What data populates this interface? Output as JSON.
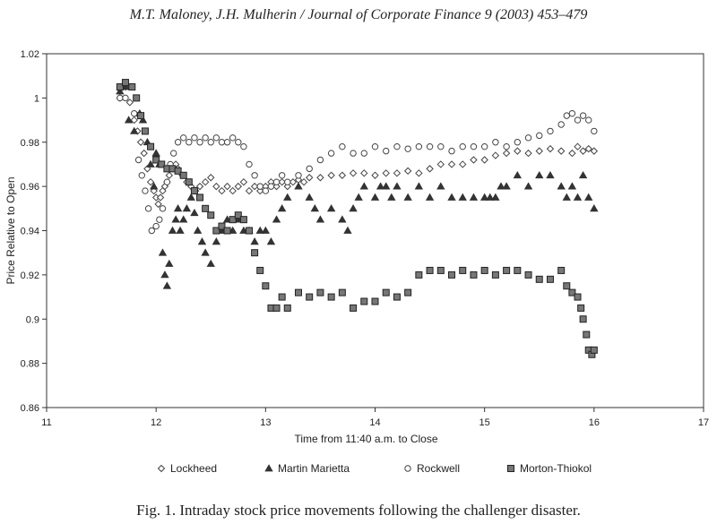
{
  "header": {
    "text": "M.T. Maloney, J.H. Mulherin / Journal of Corporate Finance 9 (2003) 453–479"
  },
  "caption": {
    "text": "Fig. 1. Intraday stock price movements following the challenger disaster."
  },
  "chart_data": {
    "type": "scatter",
    "title": "",
    "xlabel": "Time from 11:40 a.m. to Close",
    "ylabel": "Price Relative to Open",
    "xlim": [
      11,
      17
    ],
    "ylim": [
      0.86,
      1.02
    ],
    "x_ticks": [
      11,
      12,
      13,
      14,
      15,
      16,
      17
    ],
    "y_ticks": [
      0.86,
      0.88,
      0.9,
      0.92,
      0.94,
      0.96,
      0.98,
      1.0,
      1.02
    ],
    "x_tick_labels": [
      "11",
      "12",
      "13",
      "14",
      "15",
      "16",
      "17"
    ],
    "y_tick_labels": [
      "0.86",
      "0.88",
      "0.9",
      "0.92",
      "0.94",
      "0.96",
      "0.98",
      "1",
      "1.02"
    ],
    "grid": false,
    "legend_position": "bottom",
    "series": [
      {
        "name": "Lockheed",
        "marker": "diamond",
        "color": "#444444",
        "points": [
          [
            11.67,
            1.0
          ],
          [
            11.72,
            1.005
          ],
          [
            11.76,
            0.998
          ],
          [
            11.8,
            0.99
          ],
          [
            11.83,
            0.985
          ],
          [
            11.86,
            0.98
          ],
          [
            11.89,
            0.975
          ],
          [
            11.92,
            0.968
          ],
          [
            11.95,
            0.962
          ],
          [
            11.98,
            0.958
          ],
          [
            12.0,
            0.955
          ],
          [
            12.02,
            0.952
          ],
          [
            12.04,
            0.955
          ],
          [
            12.06,
            0.958
          ],
          [
            12.08,
            0.96
          ],
          [
            12.1,
            0.962
          ],
          [
            12.12,
            0.965
          ],
          [
            12.15,
            0.968
          ],
          [
            12.18,
            0.97
          ],
          [
            12.2,
            0.968
          ],
          [
            12.24,
            0.965
          ],
          [
            12.28,
            0.962
          ],
          [
            12.32,
            0.96
          ],
          [
            12.36,
            0.958
          ],
          [
            12.4,
            0.96
          ],
          [
            12.45,
            0.962
          ],
          [
            12.5,
            0.964
          ],
          [
            12.55,
            0.96
          ],
          [
            12.6,
            0.958
          ],
          [
            12.65,
            0.96
          ],
          [
            12.7,
            0.958
          ],
          [
            12.75,
            0.96
          ],
          [
            12.8,
            0.962
          ],
          [
            12.85,
            0.958
          ],
          [
            12.9,
            0.96
          ],
          [
            12.95,
            0.958
          ],
          [
            13.0,
            0.96
          ],
          [
            13.05,
            0.962
          ],
          [
            13.1,
            0.96
          ],
          [
            13.15,
            0.962
          ],
          [
            13.2,
            0.96
          ],
          [
            13.25,
            0.962
          ],
          [
            13.3,
            0.963
          ],
          [
            13.35,
            0.962
          ],
          [
            13.4,
            0.964
          ],
          [
            13.5,
            0.964
          ],
          [
            13.6,
            0.965
          ],
          [
            13.7,
            0.965
          ],
          [
            13.8,
            0.966
          ],
          [
            13.9,
            0.966
          ],
          [
            14.0,
            0.965
          ],
          [
            14.1,
            0.966
          ],
          [
            14.2,
            0.966
          ],
          [
            14.3,
            0.967
          ],
          [
            14.4,
            0.966
          ],
          [
            14.5,
            0.968
          ],
          [
            14.6,
            0.97
          ],
          [
            14.7,
            0.97
          ],
          [
            14.8,
            0.97
          ],
          [
            14.9,
            0.972
          ],
          [
            15.0,
            0.972
          ],
          [
            15.1,
            0.974
          ],
          [
            15.2,
            0.975
          ],
          [
            15.3,
            0.976
          ],
          [
            15.4,
            0.975
          ],
          [
            15.5,
            0.976
          ],
          [
            15.6,
            0.977
          ],
          [
            15.7,
            0.976
          ],
          [
            15.8,
            0.975
          ],
          [
            15.85,
            0.978
          ],
          [
            15.9,
            0.976
          ],
          [
            15.95,
            0.977
          ],
          [
            16.0,
            0.976
          ]
        ]
      },
      {
        "name": "Martin Marietta",
        "marker": "triangle",
        "color": "#444444",
        "points": [
          [
            11.67,
            1.003
          ],
          [
            11.72,
            1.005
          ],
          [
            11.75,
            0.99
          ],
          [
            11.8,
            0.985
          ],
          [
            11.85,
            0.993
          ],
          [
            11.88,
            0.99
          ],
          [
            11.92,
            0.98
          ],
          [
            11.95,
            0.97
          ],
          [
            11.98,
            0.96
          ],
          [
            12.0,
            0.975
          ],
          [
            12.03,
            0.97
          ],
          [
            12.06,
            0.93
          ],
          [
            12.08,
            0.92
          ],
          [
            12.1,
            0.915
          ],
          [
            12.12,
            0.925
          ],
          [
            12.15,
            0.94
          ],
          [
            12.18,
            0.945
          ],
          [
            12.2,
            0.95
          ],
          [
            12.22,
            0.94
          ],
          [
            12.25,
            0.945
          ],
          [
            12.28,
            0.95
          ],
          [
            12.32,
            0.955
          ],
          [
            12.35,
            0.948
          ],
          [
            12.38,
            0.94
          ],
          [
            12.42,
            0.935
          ],
          [
            12.45,
            0.93
          ],
          [
            12.5,
            0.925
          ],
          [
            12.55,
            0.935
          ],
          [
            12.6,
            0.94
          ],
          [
            12.65,
            0.945
          ],
          [
            12.7,
            0.94
          ],
          [
            12.75,
            0.945
          ],
          [
            12.8,
            0.94
          ],
          [
            12.85,
            0.94
          ],
          [
            12.9,
            0.935
          ],
          [
            12.95,
            0.94
          ],
          [
            13.0,
            0.94
          ],
          [
            13.05,
            0.935
          ],
          [
            13.1,
            0.945
          ],
          [
            13.15,
            0.95
          ],
          [
            13.2,
            0.955
          ],
          [
            13.3,
            0.96
          ],
          [
            13.4,
            0.955
          ],
          [
            13.45,
            0.95
          ],
          [
            13.5,
            0.945
          ],
          [
            13.6,
            0.95
          ],
          [
            13.7,
            0.945
          ],
          [
            13.75,
            0.94
          ],
          [
            13.8,
            0.95
          ],
          [
            13.85,
            0.955
          ],
          [
            13.9,
            0.96
          ],
          [
            14.0,
            0.955
          ],
          [
            14.05,
            0.96
          ],
          [
            14.1,
            0.96
          ],
          [
            14.15,
            0.955
          ],
          [
            14.2,
            0.96
          ],
          [
            14.3,
            0.955
          ],
          [
            14.4,
            0.96
          ],
          [
            14.5,
            0.955
          ],
          [
            14.6,
            0.96
          ],
          [
            14.7,
            0.955
          ],
          [
            14.8,
            0.955
          ],
          [
            14.9,
            0.955
          ],
          [
            15.0,
            0.955
          ],
          [
            15.05,
            0.955
          ],
          [
            15.1,
            0.955
          ],
          [
            15.15,
            0.96
          ],
          [
            15.2,
            0.96
          ],
          [
            15.3,
            0.965
          ],
          [
            15.4,
            0.96
          ],
          [
            15.5,
            0.965
          ],
          [
            15.6,
            0.965
          ],
          [
            15.7,
            0.96
          ],
          [
            15.75,
            0.955
          ],
          [
            15.8,
            0.96
          ],
          [
            15.85,
            0.955
          ],
          [
            15.9,
            0.965
          ],
          [
            15.95,
            0.955
          ],
          [
            16.0,
            0.95
          ]
        ]
      },
      {
        "name": "Rockwell",
        "marker": "circle",
        "color": "#444444",
        "points": [
          [
            11.67,
            1.0
          ],
          [
            11.72,
            1.0
          ],
          [
            11.77,
            1.005
          ],
          [
            11.8,
            0.993
          ],
          [
            11.84,
            0.972
          ],
          [
            11.87,
            0.965
          ],
          [
            11.9,
            0.958
          ],
          [
            11.93,
            0.95
          ],
          [
            11.96,
            0.94
          ],
          [
            12.0,
            0.942
          ],
          [
            12.03,
            0.945
          ],
          [
            12.06,
            0.95
          ],
          [
            12.1,
            0.962
          ],
          [
            12.13,
            0.97
          ],
          [
            12.16,
            0.975
          ],
          [
            12.2,
            0.98
          ],
          [
            12.25,
            0.982
          ],
          [
            12.3,
            0.98
          ],
          [
            12.35,
            0.982
          ],
          [
            12.4,
            0.98
          ],
          [
            12.45,
            0.982
          ],
          [
            12.5,
            0.98
          ],
          [
            12.55,
            0.982
          ],
          [
            12.6,
            0.98
          ],
          [
            12.65,
            0.98
          ],
          [
            12.7,
            0.982
          ],
          [
            12.75,
            0.98
          ],
          [
            12.8,
            0.978
          ],
          [
            12.85,
            0.97
          ],
          [
            12.9,
            0.965
          ],
          [
            12.95,
            0.96
          ],
          [
            13.0,
            0.958
          ],
          [
            13.05,
            0.96
          ],
          [
            13.1,
            0.962
          ],
          [
            13.15,
            0.965
          ],
          [
            13.2,
            0.962
          ],
          [
            13.3,
            0.965
          ],
          [
            13.4,
            0.968
          ],
          [
            13.5,
            0.972
          ],
          [
            13.6,
            0.975
          ],
          [
            13.7,
            0.978
          ],
          [
            13.8,
            0.975
          ],
          [
            13.9,
            0.975
          ],
          [
            14.0,
            0.978
          ],
          [
            14.1,
            0.976
          ],
          [
            14.2,
            0.978
          ],
          [
            14.3,
            0.977
          ],
          [
            14.4,
            0.978
          ],
          [
            14.5,
            0.978
          ],
          [
            14.6,
            0.978
          ],
          [
            14.7,
            0.976
          ],
          [
            14.8,
            0.978
          ],
          [
            14.9,
            0.978
          ],
          [
            15.0,
            0.978
          ],
          [
            15.1,
            0.98
          ],
          [
            15.2,
            0.978
          ],
          [
            15.3,
            0.98
          ],
          [
            15.4,
            0.982
          ],
          [
            15.5,
            0.983
          ],
          [
            15.6,
            0.985
          ],
          [
            15.7,
            0.988
          ],
          [
            15.75,
            0.992
          ],
          [
            15.8,
            0.993
          ],
          [
            15.85,
            0.99
          ],
          [
            15.9,
            0.992
          ],
          [
            15.95,
            0.99
          ],
          [
            16.0,
            0.985
          ]
        ]
      },
      {
        "name": "Morton-Thiokol",
        "marker": "square",
        "color": "#444444",
        "points": [
          [
            11.67,
            1.005
          ],
          [
            11.72,
            1.007
          ],
          [
            11.78,
            1.005
          ],
          [
            11.82,
            1.0
          ],
          [
            11.86,
            0.992
          ],
          [
            11.9,
            0.985
          ],
          [
            11.95,
            0.978
          ],
          [
            12.0,
            0.972
          ],
          [
            12.05,
            0.97
          ],
          [
            12.1,
            0.968
          ],
          [
            12.15,
            0.968
          ],
          [
            12.2,
            0.967
          ],
          [
            12.25,
            0.965
          ],
          [
            12.3,
            0.962
          ],
          [
            12.35,
            0.958
          ],
          [
            12.4,
            0.955
          ],
          [
            12.45,
            0.95
          ],
          [
            12.5,
            0.947
          ],
          [
            12.55,
            0.94
          ],
          [
            12.6,
            0.942
          ],
          [
            12.65,
            0.94
          ],
          [
            12.7,
            0.945
          ],
          [
            12.75,
            0.947
          ],
          [
            12.8,
            0.945
          ],
          [
            12.85,
            0.94
          ],
          [
            12.9,
            0.93
          ],
          [
            12.95,
            0.922
          ],
          [
            13.0,
            0.915
          ],
          [
            13.05,
            0.905
          ],
          [
            13.1,
            0.905
          ],
          [
            13.15,
            0.91
          ],
          [
            13.2,
            0.905
          ],
          [
            13.3,
            0.912
          ],
          [
            13.4,
            0.91
          ],
          [
            13.5,
            0.912
          ],
          [
            13.6,
            0.91
          ],
          [
            13.7,
            0.912
          ],
          [
            13.8,
            0.905
          ],
          [
            13.9,
            0.908
          ],
          [
            14.0,
            0.908
          ],
          [
            14.1,
            0.912
          ],
          [
            14.2,
            0.91
          ],
          [
            14.3,
            0.912
          ],
          [
            14.4,
            0.92
          ],
          [
            14.5,
            0.922
          ],
          [
            14.6,
            0.922
          ],
          [
            14.7,
            0.92
          ],
          [
            14.8,
            0.922
          ],
          [
            14.9,
            0.92
          ],
          [
            15.0,
            0.922
          ],
          [
            15.1,
            0.92
          ],
          [
            15.2,
            0.922
          ],
          [
            15.3,
            0.922
          ],
          [
            15.4,
            0.92
          ],
          [
            15.5,
            0.918
          ],
          [
            15.6,
            0.918
          ],
          [
            15.7,
            0.922
          ],
          [
            15.75,
            0.915
          ],
          [
            15.8,
            0.912
          ],
          [
            15.85,
            0.91
          ],
          [
            15.88,
            0.905
          ],
          [
            15.9,
            0.9
          ],
          [
            15.93,
            0.893
          ],
          [
            15.95,
            0.886
          ],
          [
            15.98,
            0.884
          ],
          [
            16.0,
            0.886
          ]
        ]
      }
    ]
  }
}
